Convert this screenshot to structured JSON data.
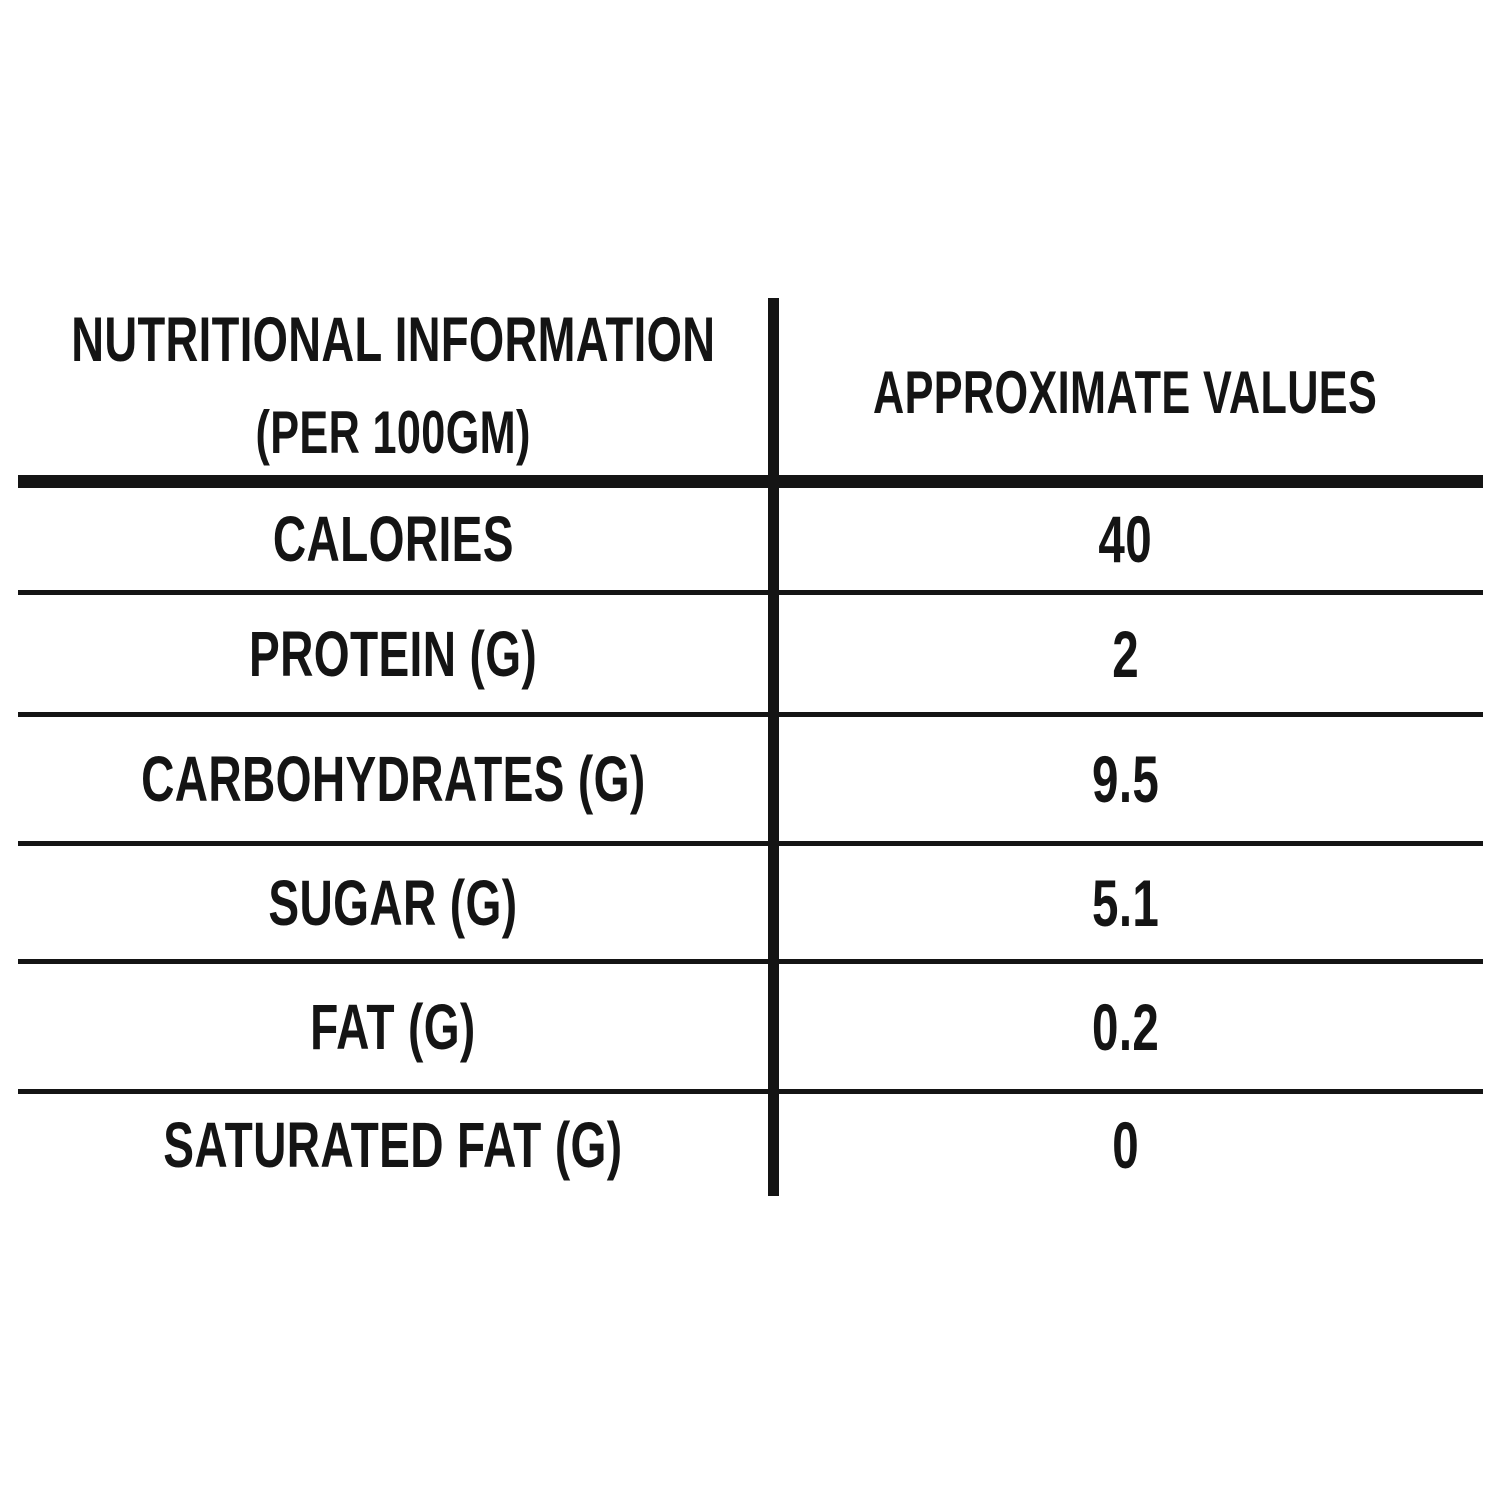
{
  "table": {
    "header": {
      "column1_line1": "NUTRITIONAL INFORMATION",
      "column1_line2": "(PER 100GM)",
      "column2": "APPROXIMATE VALUES"
    },
    "rows": [
      {
        "label": "CALORIES",
        "value": "40"
      },
      {
        "label": "PROTEIN (G)",
        "value": "2"
      },
      {
        "label": "CARBOHYDRATES (G)",
        "value": "9.5"
      },
      {
        "label": "SUGAR (G)",
        "value": "5.1"
      },
      {
        "label": "FAT (G)",
        "value": "0.2"
      },
      {
        "label": "SATURATED FAT (G)",
        "value": "0"
      }
    ],
    "colors": {
      "text": "#141414",
      "lines": "#141414",
      "background": "#ffffff"
    }
  }
}
